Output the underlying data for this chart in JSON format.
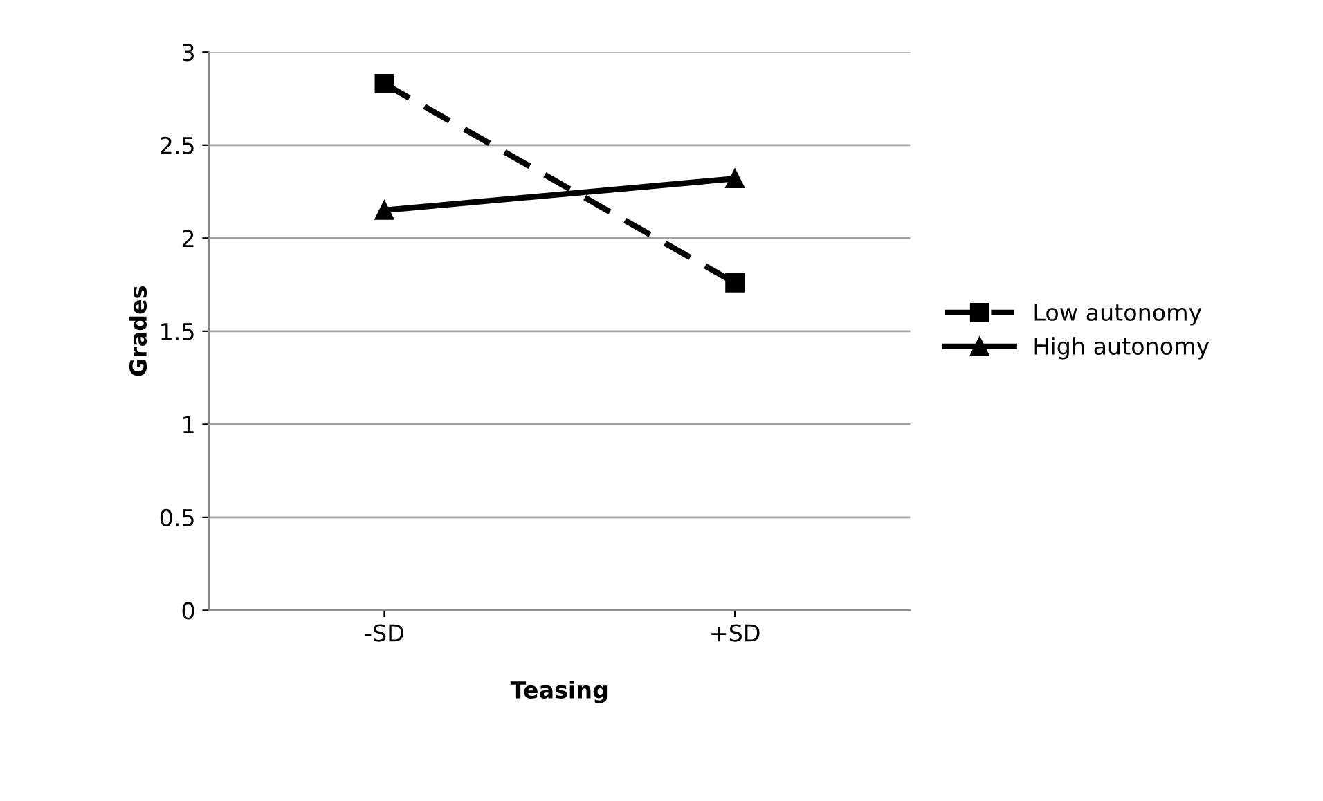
{
  "chart_data": {
    "type": "line",
    "xlabel": "Teasing",
    "ylabel": "Grades",
    "categories": [
      "-SD",
      "+SD"
    ],
    "series": [
      {
        "name": "Low autonomy",
        "color": "#000000",
        "values": [
          2.83,
          1.76
        ],
        "marker": "square",
        "line_style": "dashed"
      },
      {
        "name": "High autonomy",
        "color": "#000000",
        "values": [
          2.15,
          2.32
        ],
        "marker": "triangle",
        "line_style": "solid"
      }
    ],
    "ylim": [
      0,
      3
    ],
    "yticks": [
      0,
      0.5,
      1,
      1.5,
      2,
      2.5,
      3
    ],
    "grid": "y",
    "legend": "right"
  }
}
